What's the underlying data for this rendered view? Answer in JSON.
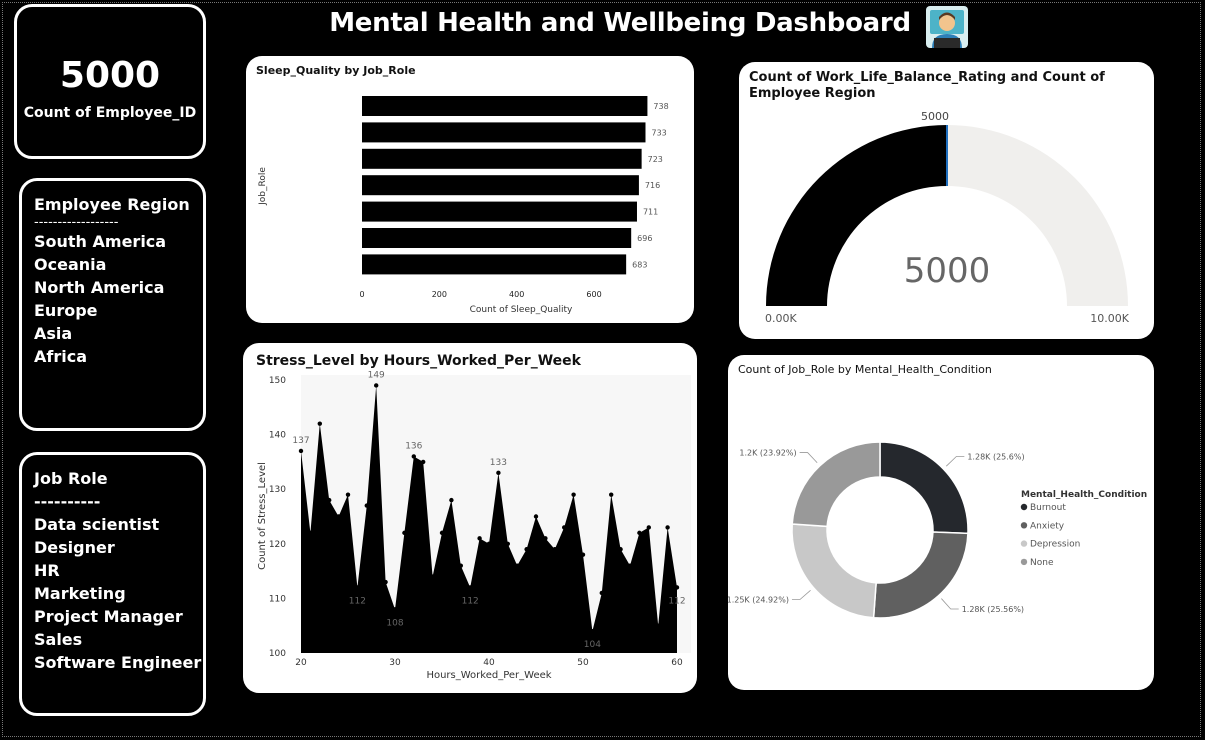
{
  "dashboard": {
    "title": "Mental Health and Wellbeing Dashboard",
    "emoji": "technologist-icon"
  },
  "kpi": {
    "value": "5000",
    "label": "Count of Employee_ID"
  },
  "region_panel": {
    "heading": "Employee Region",
    "separator": "------------------",
    "items": [
      "South America",
      "Oceania",
      "North America",
      "Europe",
      "Asia",
      "Africa"
    ]
  },
  "job_panel": {
    "heading": "Job Role",
    "separator": "----------",
    "items": [
      "Data scientist",
      "Designer",
      "HR",
      "Marketing",
      "Project Manager",
      "Sales",
      "Software Engineer"
    ]
  },
  "colors": {
    "background": "#000000",
    "card": "#ffffff",
    "bar": "#000000",
    "gauge_fill": "#000000",
    "gauge_track": "#f0efed",
    "gauge_marker": "#1f6fbf",
    "donut": [
      "#25282d",
      "#606060",
      "#c8c8c8",
      "#999999"
    ]
  },
  "chart_data": [
    {
      "type": "bar",
      "title": "Sleep_Quality by Job_Role",
      "xlabel": "Count of Sleep_Quality",
      "ylabel": "Job_Role",
      "categories": [
        "",
        "",
        "",
        "",
        "",
        "",
        ""
      ],
      "values": [
        738,
        733,
        723,
        716,
        711,
        696,
        683
      ],
      "x_ticks": [
        "0",
        "200",
        "400",
        "600"
      ],
      "xlim": [
        0,
        740
      ]
    },
    {
      "type": "gauge",
      "title": "Count of Work_Life_Balance_Rating and Count of Employee Region",
      "value": 5000,
      "value_label": "5000",
      "target_label": "5000",
      "min_label": "0.00K",
      "max_label": "10.00K",
      "range": [
        0,
        10000
      ]
    },
    {
      "type": "area",
      "title": "Stress_Level by Hours_Worked_Per_Week",
      "xlabel": "Hours_Worked_Per_Week",
      "ylabel": "Count of Stress_Level",
      "x": [
        20,
        21,
        22,
        23,
        24,
        25,
        26,
        27,
        28,
        29,
        30,
        31,
        32,
        33,
        34,
        35,
        36,
        37,
        38,
        39,
        40,
        41,
        42,
        43,
        44,
        45,
        46,
        47,
        48,
        49,
        50,
        51,
        52,
        53,
        54,
        55,
        56,
        57,
        58,
        59,
        60
      ],
      "y": [
        137,
        122,
        142,
        128,
        125,
        129,
        112,
        127,
        149,
        113,
        108,
        122,
        136,
        135,
        114,
        122,
        128,
        116,
        112,
        121,
        120,
        133,
        120,
        116,
        119,
        125,
        121,
        119,
        123,
        129,
        118,
        104,
        111,
        129,
        119,
        116,
        122,
        123,
        105,
        123,
        112
      ],
      "xlim": [
        20,
        60
      ],
      "ylim": [
        100,
        150
      ],
      "x_ticks": [
        "20",
        "30",
        "40",
        "50",
        "60"
      ],
      "y_ticks": [
        "100",
        "110",
        "120",
        "130",
        "140",
        "150"
      ],
      "data_labels": [
        {
          "x": 20,
          "text": "137"
        },
        {
          "x": 26,
          "text": "112"
        },
        {
          "x": 28,
          "text": "149"
        },
        {
          "x": 30,
          "text": "108"
        },
        {
          "x": 32,
          "text": "136"
        },
        {
          "x": 38,
          "text": "112"
        },
        {
          "x": 41,
          "text": "133"
        },
        {
          "x": 51,
          "text": "104"
        },
        {
          "x": 60,
          "text": "112"
        }
      ]
    },
    {
      "type": "pie",
      "title": "Count of Job_Role by Mental_Health_Condition",
      "legend_title": "Mental_Health_Condition",
      "labels": [
        "Burnout",
        "Anxiety",
        "Depression",
        "None"
      ],
      "values": [
        1280,
        1278,
        1246,
        1196
      ],
      "data_labels": [
        "1.28K (25.6%)",
        "1.28K (25.56%)",
        "1.25K (24.92%)",
        "1.2K (23.92%)"
      ]
    }
  ]
}
